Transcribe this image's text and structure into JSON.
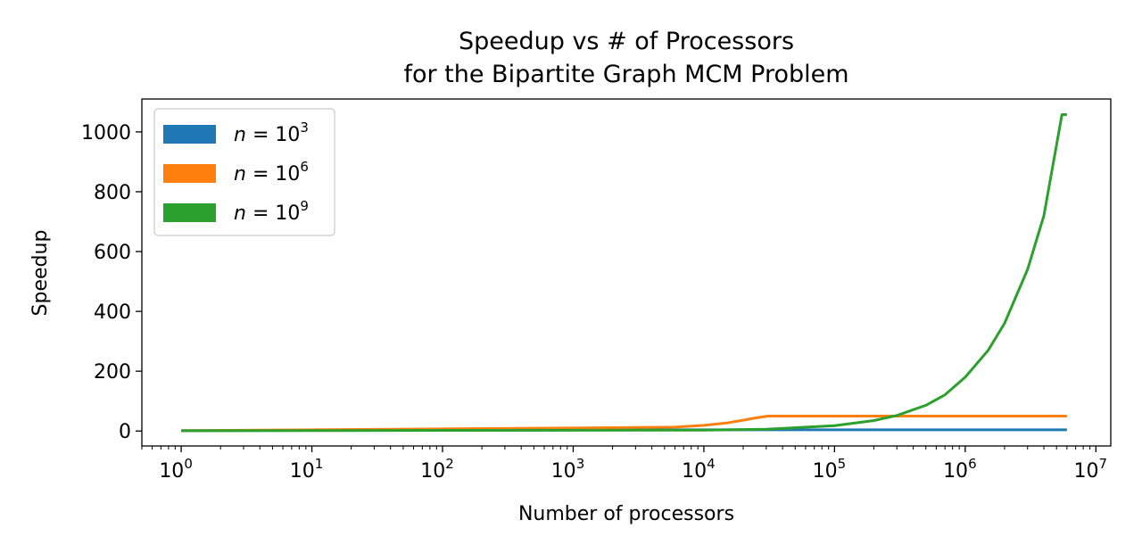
{
  "chart_data": {
    "type": "line",
    "title": [
      "Speedup vs # of Processors",
      "for the Bipartite Graph MCM Problem"
    ],
    "xlabel": "Number of processors",
    "ylabel": "Speedup",
    "xscale": "log",
    "xlim": [
      0.5,
      13000000
    ],
    "ylim": [
      -50,
      1110
    ],
    "x_ticks": [
      {
        "base": "10",
        "exp": "0",
        "value": 1
      },
      {
        "base": "10",
        "exp": "1",
        "value": 10
      },
      {
        "base": "10",
        "exp": "2",
        "value": 100
      },
      {
        "base": "10",
        "exp": "3",
        "value": 1000
      },
      {
        "base": "10",
        "exp": "4",
        "value": 10000
      },
      {
        "base": "10",
        "exp": "5",
        "value": 100000
      },
      {
        "base": "10",
        "exp": "6",
        "value": 1000000
      },
      {
        "base": "10",
        "exp": "7",
        "value": 10000000
      }
    ],
    "y_ticks": [
      "0",
      "200",
      "400",
      "600",
      "800",
      "1000"
    ],
    "grid": false,
    "legend": "top-left",
    "series": [
      {
        "name": "n = 10^3",
        "label_var": "n",
        "label_base": "10",
        "label_exp": "3",
        "color": "#1f77b4",
        "x": [
          1,
          10,
          100,
          1000,
          10000,
          100000,
          1000000,
          6000000
        ],
        "y": [
          1,
          2,
          3,
          3.5,
          4,
          4,
          4,
          4
        ]
      },
      {
        "name": "n = 10^6",
        "label_var": "n",
        "label_base": "10",
        "label_exp": "6",
        "color": "#ff7f0e",
        "x": [
          1,
          10,
          100,
          1000,
          6000,
          10000,
          15000,
          20000,
          25000,
          31000,
          100000,
          1000000,
          6000000
        ],
        "y": [
          1,
          4,
          7,
          10,
          13,
          19,
          27,
          36,
          44,
          50,
          50,
          50,
          50
        ]
      },
      {
        "name": "n = 10^9",
        "label_var": "n",
        "label_base": "10",
        "label_exp": "9",
        "color": "#2ca02c",
        "x": [
          1,
          10,
          100,
          1000,
          10000,
          30000,
          100000,
          200000,
          300000,
          500000,
          700000,
          1000000,
          1500000,
          2000000,
          3000000,
          4000000,
          5500000,
          6000000
        ],
        "y": [
          1,
          1.5,
          2,
          2.5,
          3,
          6,
          18,
          35,
          52,
          86,
          121,
          180,
          270,
          360,
          540,
          720,
          1058,
          1058
        ]
      }
    ]
  }
}
